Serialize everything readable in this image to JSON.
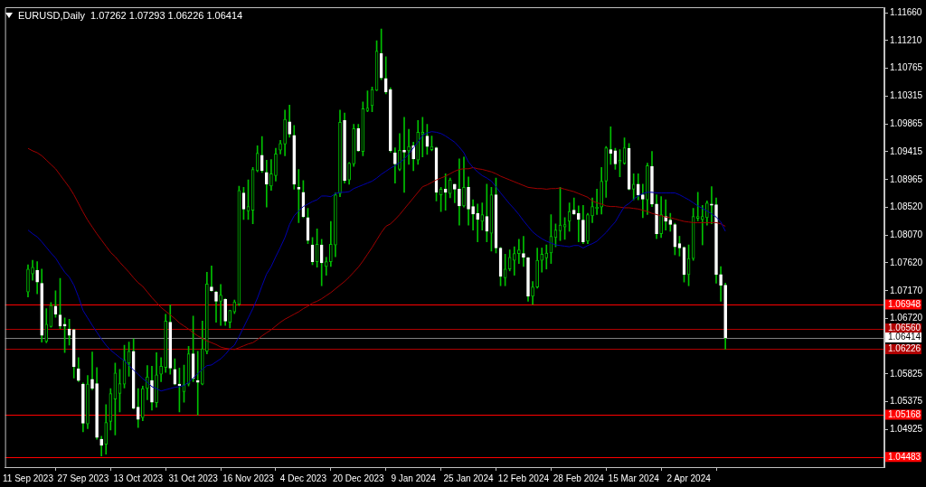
{
  "chart_data": {
    "type": "candlestick",
    "title": "EURUSD,Daily",
    "subtitle": "1.07262 1.07293 1.06226 1.06414",
    "color": "#00c000",
    "colors": [
      "#00c000",
      "#00c000",
      "#ffffff",
      "#ffffff",
      "#00c000",
      "#00c000",
      "#ffffff",
      "#ffffff",
      "#ffffff",
      "#ffffff",
      "#ffffff",
      "#ffffff",
      "#ffffff",
      "#00c000",
      "#ffffff",
      "#ffffff",
      "#ffffff",
      "#00c000",
      "#00c000",
      "#00c000",
      "#00c000",
      "#00c000",
      "#00c000",
      "#ffffff",
      "#ffffff",
      "#00c000",
      "#00c000",
      "#ffffff",
      "#00c000",
      "#00c000",
      "#00c000",
      "#ffffff",
      "#ffffff",
      "#ffffff",
      "#00c000",
      "#00c000",
      "#ffffff",
      "#ffffff",
      "#00c000",
      "#00c000",
      "#ffffff",
      "#ffffff",
      "#00c000",
      "#ffffff",
      "#00c000",
      "#00c000",
      "#00c000",
      "#ffffff",
      "#00c000",
      "#00c000",
      "#00c000",
      "#ffffff",
      "#ffffff",
      "#00c000",
      "#00c000",
      "#00c000",
      "#00c000",
      "#ffffff",
      "#ffffff",
      "#ffffff",
      "#ffffff",
      "#ffffff",
      "#ffffff",
      "#00c000",
      "#ffffff",
      "#00c000",
      "#00c000",
      "#00c000",
      "#00c000",
      "#ffffff",
      "#00c000",
      "#00c000",
      "#ffffff",
      "#00c000",
      "#00c000",
      "#00c000",
      "#00c000",
      "#ffffff",
      "#ffffff",
      "#ffffff",
      "#ffffff",
      "#00c000",
      "#ffffff",
      "#00c000",
      "#ffffff",
      "#00c000",
      "#00c000",
      "#ffffff",
      "#00c000",
      "#ffffff",
      "#00c000",
      "#ffffff",
      "#00c000",
      "#ffffff",
      "#ffffff",
      "#00c000",
      "#ffffff",
      "#ffffff",
      "#ffffff",
      "#00c000",
      "#ffffff",
      "#00c000",
      "#ffffff",
      "#ffffff",
      "#00c000",
      "#00c000",
      "#00c000",
      "#00c000",
      "#ffffff",
      "#ffffff",
      "#00c000",
      "#00c000",
      "#00c000",
      "#00c000",
      "#00c000",
      "#00c000",
      "#00c000",
      "#00c000",
      "#00c000",
      "#ffffff",
      "#ffffff",
      "#ffffff",
      "#00c000",
      "#00c000",
      "#00c000",
      "#00c000",
      "#00c000",
      "#ffffff",
      "#ffffff",
      "#00c000",
      "#00c000",
      "#ffffff",
      "#00c000",
      "#ffffff",
      "#ffffff",
      "#00c000",
      "#ffffff",
      "#ffffff",
      "#00c000",
      "#ffffff",
      "#ffffff",
      "#ffffff",
      "#ffffff",
      "#ffffff",
      "#00c000",
      "#00c000",
      "#00c000",
      "#00c000",
      "#00c000",
      "#ffffff",
      "#ffffff",
      "#ffffff",
      "#ffffff"
    ],
    "categories": [
      "11 Sep 2023",
      null,
      null,
      null,
      null,
      null,
      null,
      null,
      null,
      null,
      null,
      null,
      "27 Sep 2023",
      null,
      null,
      null,
      null,
      null,
      null,
      null,
      null,
      null,
      null,
      null,
      "13 Oct 2023",
      null,
      null,
      null,
      null,
      null,
      null,
      null,
      null,
      null,
      null,
      null,
      "31 Oct 2023",
      null,
      null,
      null,
      null,
      null,
      null,
      null,
      null,
      null,
      null,
      null,
      "16 Nov 2023",
      null,
      null,
      null,
      null,
      null,
      null,
      null,
      null,
      null,
      null,
      null,
      "4 Dec 2023",
      null,
      null,
      null,
      null,
      null,
      null,
      null,
      null,
      null,
      null,
      null,
      "20 Dec 2023",
      null,
      null,
      null,
      null,
      null,
      null,
      null,
      null,
      null,
      null,
      null,
      "9 Jan 2024",
      null,
      null,
      null,
      null,
      null,
      null,
      null,
      null,
      null,
      null,
      null,
      "25 Jan 2024",
      null,
      null,
      null,
      null,
      null,
      null,
      null,
      null,
      null,
      null,
      null,
      "12 Feb 2024",
      null,
      null,
      null,
      null,
      null,
      null,
      null,
      null,
      null,
      null,
      null,
      "28 Feb 2024",
      null,
      null,
      null,
      null,
      null,
      null,
      null,
      null,
      null,
      null,
      null,
      "15 Mar 2024",
      null,
      null,
      null,
      null,
      null,
      null,
      null,
      null,
      null,
      null,
      null,
      "2 Apr 2024",
      null,
      null,
      null,
      null,
      null,
      null,
      null,
      null
    ],
    "ohlc": [
      [
        1.0715,
        1.0759,
        1.0707,
        1.0752
      ],
      [
        1.0744,
        1.0766,
        1.0734,
        1.0755
      ],
      [
        1.075,
        1.0764,
        1.0712,
        1.0731
      ],
      [
        1.0729,
        1.0752,
        1.0634,
        1.0645
      ],
      [
        1.0635,
        1.0688,
        1.0633,
        1.0663
      ],
      [
        1.0659,
        1.0698,
        1.0658,
        1.0693
      ],
      [
        1.0692,
        1.0717,
        1.0674,
        1.0679
      ],
      [
        1.0678,
        1.0737,
        1.0656,
        1.066
      ],
      [
        1.0663,
        1.0673,
        1.0617,
        1.066
      ],
      [
        1.0655,
        1.0671,
        1.0629,
        1.0645
      ],
      [
        1.0654,
        1.0655,
        1.0576,
        1.0594
      ],
      [
        1.0591,
        1.0609,
        1.057,
        1.0572
      ],
      [
        1.0566,
        1.0568,
        1.0489,
        1.0503
      ],
      [
        1.0502,
        1.058,
        1.0494,
        1.0566
      ],
      [
        1.0574,
        1.0618,
        1.0557,
        1.0559
      ],
      [
        1.0567,
        1.0593,
        1.0477,
        1.048
      ],
      [
        1.0477,
        1.0482,
        1.045,
        1.0467
      ],
      [
        1.0469,
        1.0533,
        1.0453,
        1.0504
      ],
      [
        1.0506,
        1.0559,
        1.0492,
        1.0551
      ],
      [
        1.0542,
        1.06,
        1.0484,
        1.0584
      ],
      [
        1.0551,
        1.059,
        1.0521,
        1.0567
      ],
      [
        1.0566,
        1.0629,
        1.056,
        1.0605
      ],
      [
        1.06,
        1.0634,
        1.0579,
        1.0619
      ],
      [
        1.0619,
        1.0639,
        1.0526,
        1.0527
      ],
      [
        1.0529,
        1.0559,
        1.0496,
        1.0509
      ],
      [
        1.0512,
        1.0563,
        1.0507,
        1.0559
      ],
      [
        1.0559,
        1.0596,
        1.0541,
        1.0578
      ],
      [
        1.0572,
        1.0595,
        1.0524,
        1.0537
      ],
      [
        1.0536,
        1.0617,
        1.0529,
        1.0581
      ],
      [
        1.0582,
        1.0609,
        1.057,
        1.0595
      ],
      [
        1.0593,
        1.0679,
        1.0585,
        1.0668
      ],
      [
        1.0666,
        1.0694,
        1.0582,
        1.0592
      ],
      [
        1.059,
        1.0607,
        1.0565,
        1.0566
      ],
      [
        1.0566,
        1.0592,
        1.0521,
        1.0564
      ],
      [
        1.0554,
        1.0597,
        1.0537,
        1.0565
      ],
      [
        1.0566,
        1.0627,
        1.0563,
        1.0615
      ],
      [
        1.0615,
        1.0676,
        1.057,
        1.0575
      ],
      [
        1.0572,
        1.0619,
        1.0516,
        1.0569
      ],
      [
        1.0566,
        1.0668,
        1.0565,
        1.0623
      ],
      [
        1.0619,
        1.0747,
        1.0615,
        1.0728
      ],
      [
        1.0723,
        1.0757,
        1.0716,
        1.0717
      ],
      [
        1.0715,
        1.0716,
        1.0666,
        1.07
      ],
      [
        1.07,
        1.0727,
        1.0661,
        1.071
      ],
      [
        1.0703,
        1.0704,
        1.0661,
        1.0668
      ],
      [
        1.0666,
        1.0685,
        1.0657,
        1.0685
      ],
      [
        1.0683,
        1.0702,
        1.068,
        1.0699
      ],
      [
        1.0695,
        1.0886,
        1.0693,
        1.0879
      ],
      [
        1.0875,
        1.0884,
        1.0832,
        1.0849
      ],
      [
        1.0846,
        1.0896,
        1.0832,
        1.0853
      ],
      [
        1.0847,
        1.0916,
        1.0825,
        1.0913
      ],
      [
        1.0911,
        1.0951,
        1.0909,
        1.0939
      ],
      [
        1.0936,
        1.0966,
        1.0908,
        1.0911
      ],
      [
        1.0908,
        1.0928,
        1.0852,
        1.0889
      ],
      [
        1.0886,
        1.0929,
        1.0879,
        1.0906
      ],
      [
        1.0903,
        1.0947,
        1.0894,
        1.0938
      ],
      [
        1.0944,
        1.096,
        1.0938,
        1.0955
      ],
      [
        1.0954,
        1.1009,
        1.0935,
        1.0994
      ],
      [
        1.099,
        1.1017,
        1.0965,
        1.097
      ],
      [
        1.0968,
        1.0984,
        1.0881,
        1.0889
      ],
      [
        1.0884,
        1.0913,
        1.0827,
        1.0881
      ],
      [
        1.0876,
        1.0895,
        1.0835,
        1.0837
      ],
      [
        1.0835,
        1.085,
        1.0793,
        1.0798
      ],
      [
        1.0791,
        1.0803,
        1.0759,
        1.0764
      ],
      [
        1.0764,
        1.0817,
        1.0755,
        1.0792
      ],
      [
        1.0791,
        1.08,
        1.0725,
        1.0762
      ],
      [
        1.0756,
        1.0771,
        1.0742,
        1.0764
      ],
      [
        1.0764,
        1.0829,
        1.0756,
        1.0792
      ],
      [
        1.0791,
        1.0875,
        1.0772,
        1.0872
      ],
      [
        1.0874,
        1.1009,
        1.0869,
        1.0989
      ],
      [
        1.0992,
        1.1004,
        1.0891,
        1.0895
      ],
      [
        1.0896,
        1.0924,
        1.0889,
        1.0923
      ],
      [
        1.0922,
        1.0986,
        1.0918,
        1.0979
      ],
      [
        1.0979,
        1.0986,
        1.0942,
        1.0943
      ],
      [
        1.0942,
        1.1022,
        1.0935,
        1.1011
      ],
      [
        1.1008,
        1.104,
        1.1006,
        1.1012
      ],
      [
        1.1016,
        1.1046,
        1.1006,
        1.1042
      ],
      [
        1.1041,
        1.1121,
        1.104,
        1.1104
      ],
      [
        1.11,
        1.114,
        1.1058,
        1.1061
      ],
      [
        1.106,
        1.1095,
        1.1035,
        1.1038
      ],
      [
        1.1042,
        1.1045,
        1.0941,
        1.0943
      ],
      [
        1.094,
        1.0948,
        1.0891,
        1.0922
      ],
      [
        1.0913,
        1.0971,
        1.0911,
        1.0944
      ],
      [
        1.0944,
        1.0997,
        1.0876,
        1.0941
      ],
      [
        1.0943,
        1.0978,
        1.0921,
        1.095
      ],
      [
        1.0951,
        1.0957,
        1.0911,
        1.093
      ],
      [
        1.0928,
        1.0992,
        1.0921,
        1.0973
      ],
      [
        1.097,
        1.0997,
        1.0933,
        1.0973
      ],
      [
        1.0967,
        1.0986,
        1.0937,
        1.095
      ],
      [
        1.0945,
        1.0967,
        1.0943,
        1.095
      ],
      [
        1.0948,
        1.0949,
        1.0862,
        1.0876
      ],
      [
        1.0872,
        1.0884,
        1.0845,
        1.0881
      ],
      [
        1.0881,
        1.0906,
        1.0847,
        1.0876
      ],
      [
        1.0874,
        1.0899,
        1.0867,
        1.0896
      ],
      [
        1.0889,
        1.0889,
        1.0859,
        1.0881
      ],
      [
        1.0881,
        1.093,
        1.0823,
        1.0854
      ],
      [
        1.0854,
        1.0933,
        1.0852,
        1.0884
      ],
      [
        1.0884,
        1.0901,
        1.0823,
        1.0849
      ],
      [
        1.0853,
        1.0864,
        1.0815,
        1.0841
      ],
      [
        1.0842,
        1.0857,
        1.0796,
        1.0832
      ],
      [
        1.0829,
        1.0859,
        1.0815,
        1.084
      ],
      [
        1.0837,
        1.0889,
        1.0796,
        1.0813
      ],
      [
        1.081,
        1.0884,
        1.0781,
        1.0872
      ],
      [
        1.0872,
        1.0899,
        1.0778,
        1.0786
      ],
      [
        1.0786,
        1.0787,
        1.0725,
        1.074
      ],
      [
        1.0738,
        1.0776,
        1.0725,
        1.0752
      ],
      [
        1.0752,
        1.0783,
        1.0749,
        1.0771
      ],
      [
        1.0766,
        1.0788,
        1.0742,
        1.0777
      ],
      [
        1.0777,
        1.08,
        1.0761,
        1.0783
      ],
      [
        1.0777,
        1.0805,
        1.0756,
        1.0771
      ],
      [
        1.077,
        1.0771,
        1.07,
        1.0708
      ],
      [
        1.0708,
        1.0732,
        1.0695,
        1.0723
      ],
      [
        1.0723,
        1.0786,
        1.0721,
        1.0766
      ],
      [
        1.0766,
        1.0786,
        1.0747,
        1.0776
      ],
      [
        1.077,
        1.0791,
        1.0752,
        1.0778
      ],
      [
        1.0778,
        1.084,
        1.0761,
        1.0805
      ],
      [
        1.0803,
        1.0825,
        1.0788,
        1.0815
      ],
      [
        1.0814,
        1.0884,
        1.0798,
        1.0823
      ],
      [
        1.082,
        1.0835,
        1.08,
        1.0824
      ],
      [
        1.0829,
        1.0859,
        1.0813,
        1.0845
      ],
      [
        1.0847,
        1.0867,
        1.084,
        1.0841
      ],
      [
        1.0842,
        1.0854,
        1.0796,
        1.0832
      ],
      [
        1.0831,
        1.0855,
        1.0793,
        1.0796
      ],
      [
        1.0797,
        1.0842,
        1.0793,
        1.084
      ],
      [
        1.0838,
        1.0867,
        1.0827,
        1.0853
      ],
      [
        1.085,
        1.0881,
        1.084,
        1.0852
      ],
      [
        1.0852,
        1.0916,
        1.0841,
        1.0894
      ],
      [
        1.0894,
        1.095,
        1.0868,
        1.0948
      ],
      [
        1.0945,
        1.0982,
        1.0921,
        1.0939
      ],
      [
        1.0943,
        1.0947,
        1.0913,
        1.0922
      ],
      [
        1.0925,
        1.0945,
        1.0901,
        1.0928
      ],
      [
        1.0923,
        1.0964,
        1.0921,
        1.0948
      ],
      [
        1.0947,
        1.0955,
        1.088,
        1.0881
      ],
      [
        1.0881,
        1.0906,
        1.0864,
        1.0889
      ],
      [
        1.0889,
        1.0906,
        1.0864,
        1.0872
      ],
      [
        1.0872,
        1.0889,
        1.0835,
        1.0865
      ],
      [
        1.0864,
        1.0923,
        1.084,
        1.0919
      ],
      [
        1.0918,
        1.0942,
        1.0853,
        1.0857
      ],
      [
        1.0857,
        1.0872,
        1.0801,
        1.0809
      ],
      [
        1.0809,
        1.0869,
        1.0803,
        1.084
      ],
      [
        1.0837,
        1.0864,
        1.0815,
        1.0829
      ],
      [
        1.0831,
        1.0842,
        1.0813,
        1.0824
      ],
      [
        1.0824,
        1.0826,
        1.0775,
        1.0788
      ],
      [
        1.0793,
        1.0805,
        1.0773,
        1.0786
      ],
      [
        1.0787,
        1.0788,
        1.0731,
        1.0743
      ],
      [
        1.0743,
        1.0791,
        1.0725,
        1.0769
      ],
      [
        1.0769,
        1.085,
        1.0766,
        1.0837
      ],
      [
        1.0834,
        1.0876,
        1.083,
        1.0837
      ],
      [
        1.0832,
        1.0855,
        1.0791,
        1.0837
      ],
      [
        1.0835,
        1.0862,
        1.0823,
        1.0859
      ],
      [
        1.0857,
        1.0885,
        1.0825,
        1.0855
      ],
      [
        1.0856,
        1.0867,
        1.0729,
        1.0743
      ],
      [
        1.0743,
        1.0756,
        1.07,
        1.0726
      ],
      [
        1.07262,
        1.07293,
        1.06226,
        1.06414
      ]
    ],
    "series": [
      {
        "type": "line",
        "color": "#0000b0",
        "values": [
          1.0815,
          1.0809,
          1.0804,
          1.0796,
          1.0787,
          1.0778,
          1.077,
          1.0758,
          1.0747,
          1.0739,
          1.0726,
          1.0707,
          1.0685,
          1.0673,
          1.0661,
          1.065,
          1.0639,
          1.0629,
          1.0621,
          1.0615,
          1.0609,
          1.0604,
          1.0596,
          1.0589,
          1.0582,
          1.0575,
          1.0569,
          1.0562,
          1.0559,
          1.0555,
          1.0557,
          1.0559,
          1.0561,
          1.0562,
          1.0564,
          1.0569,
          1.0576,
          1.0583,
          1.059,
          1.0596,
          1.0597,
          1.0602,
          1.0607,
          1.0614,
          1.0623,
          1.0629,
          1.0643,
          1.0658,
          1.0673,
          1.0688,
          1.0705,
          1.0725,
          1.0744,
          1.0756,
          1.0772,
          1.0787,
          1.0803,
          1.0824,
          1.0838,
          1.0846,
          1.0853,
          1.0857,
          1.0861,
          1.0864,
          1.087,
          1.087,
          1.0869,
          1.0874,
          1.0876,
          1.0876,
          1.0877,
          1.0882,
          1.0885,
          1.0888,
          1.0891,
          1.0894,
          1.0899,
          1.0905,
          1.091,
          1.0915,
          1.0919,
          1.0924,
          1.093,
          1.0938,
          1.0948,
          1.0957,
          1.0968,
          1.0972,
          1.0974,
          1.0973,
          1.0971,
          1.0967,
          1.0962,
          1.0957,
          1.0949,
          1.094,
          1.0925,
          1.0916,
          1.0909,
          1.0903,
          1.0899,
          1.0894,
          1.0885,
          1.0875,
          1.0866,
          1.0857,
          1.0849,
          1.084,
          1.083,
          1.0821,
          1.0812,
          1.0806,
          1.0801,
          1.0797,
          1.0794,
          1.0791,
          1.079,
          1.0789,
          1.0788,
          1.079,
          1.079,
          1.0786,
          1.079,
          1.0793,
          1.0797,
          1.0804,
          1.0811,
          1.082,
          1.0828,
          1.0841,
          1.0853,
          1.0858,
          1.0865,
          1.087,
          1.0874,
          1.0876,
          1.0876,
          1.0875,
          1.0875,
          1.0875,
          1.0875,
          1.0875,
          1.0872,
          1.0868,
          1.0864,
          1.0859,
          1.0854,
          1.085,
          1.0846,
          1.0841,
          1.0836,
          1.0828,
          1.0813
        ]
      },
      {
        "type": "line",
        "color": "#a00000",
        "values": [
          1.0947,
          1.0943,
          1.094,
          1.0935,
          1.0928,
          1.0921,
          1.0914,
          1.0904,
          1.0894,
          1.0884,
          1.0872,
          1.0858,
          1.0844,
          1.0831,
          1.082,
          1.0809,
          1.0799,
          1.0789,
          1.0779,
          1.0772,
          1.0763,
          1.0755,
          1.0747,
          1.0738,
          1.073,
          1.0724,
          1.0715,
          1.0706,
          1.0698,
          1.069,
          1.0684,
          1.0678,
          1.0672,
          1.0665,
          1.066,
          1.0655,
          1.0649,
          1.0644,
          1.064,
          1.0636,
          1.0633,
          1.063,
          1.0626,
          1.0624,
          1.0623,
          1.0622,
          1.0625,
          1.0628,
          1.0631,
          1.0633,
          1.0638,
          1.0644,
          1.0649,
          1.0654,
          1.066,
          1.0666,
          1.0671,
          1.0675,
          1.0679,
          1.0683,
          1.0688,
          1.0692,
          1.0697,
          1.07,
          1.0704,
          1.0709,
          1.0714,
          1.072,
          1.0726,
          1.0732,
          1.0739,
          1.0747,
          1.0755,
          1.0765,
          1.0776,
          1.0787,
          1.0799,
          1.0811,
          1.0821,
          1.0825,
          1.0832,
          1.084,
          1.0849,
          1.0858,
          1.0867,
          1.0876,
          1.0885,
          1.0888,
          1.0892,
          1.0896,
          1.0899,
          1.0902,
          1.0906,
          1.091,
          1.0913,
          1.0914,
          1.0914,
          1.0916,
          1.0914,
          1.0913,
          1.0911,
          1.0909,
          1.0906,
          1.0902,
          1.0899,
          1.0896,
          1.0893,
          1.089,
          1.0887,
          1.0884,
          1.0883,
          1.0882,
          1.0882,
          1.0881,
          1.0882,
          1.0882,
          1.0883,
          1.0881,
          1.0879,
          1.0877,
          1.0874,
          1.0871,
          1.0868,
          1.0862,
          1.0859,
          1.0857,
          1.0854,
          1.0853,
          1.0853,
          1.0852,
          1.0851,
          1.0851,
          1.085,
          1.0849,
          1.0847,
          1.0845,
          1.0842,
          1.084,
          1.0838,
          1.0836,
          1.0835,
          1.0833,
          1.0831,
          1.0829,
          1.0828,
          1.0827,
          1.0827,
          1.0827,
          1.0827,
          1.0827,
          1.0827,
          1.0825,
          1.0821
        ]
      }
    ],
    "ylim": [
      1.0432,
      1.1175
    ],
    "yticks": [
      {
        "value": 1.1166,
        "label": "1.11660"
      },
      {
        "value": 1.1121,
        "label": "1.11210"
      },
      {
        "value": 1.10765,
        "label": "1.10765"
      },
      {
        "value": 1.10315,
        "label": "1.10315"
      },
      {
        "value": 1.09865,
        "label": "1.09865"
      },
      {
        "value": 1.09415,
        "label": "1.09415"
      },
      {
        "value": 1.08965,
        "label": "1.08965"
      },
      {
        "value": 1.0852,
        "label": "1.08520"
      },
      {
        "value": 1.0807,
        "label": "1.08070"
      },
      {
        "value": 1.0762,
        "label": "1.07620"
      },
      {
        "value": 1.0717,
        "label": "1.07170"
      },
      {
        "value": 1.0672,
        "label": "1.06720"
      },
      {
        "value": 1.05825,
        "label": "1.05825"
      },
      {
        "value": 1.05375,
        "label": "1.05375"
      },
      {
        "value": 1.04925,
        "label": "1.04925"
      }
    ],
    "ref_lines": [
      {
        "axis": "y",
        "value": 1.06948,
        "label": "1.06948",
        "color": "#ff0000"
      },
      {
        "axis": "y",
        "value": 1.0656,
        "label": "1.06560",
        "color": "#b00000"
      },
      {
        "axis": "y",
        "value": 1.06414,
        "label": "1.06414",
        "color": "#808080"
      },
      {
        "axis": "y",
        "value": 1.06226,
        "label": "1.06226",
        "color": "#b00000"
      },
      {
        "axis": "y",
        "value": 1.05168,
        "label": "1.05168",
        "color": "#ff0000"
      },
      {
        "axis": "y",
        "value": 1.04483,
        "label": "1.04483",
        "color": "#ff0000"
      }
    ]
  }
}
